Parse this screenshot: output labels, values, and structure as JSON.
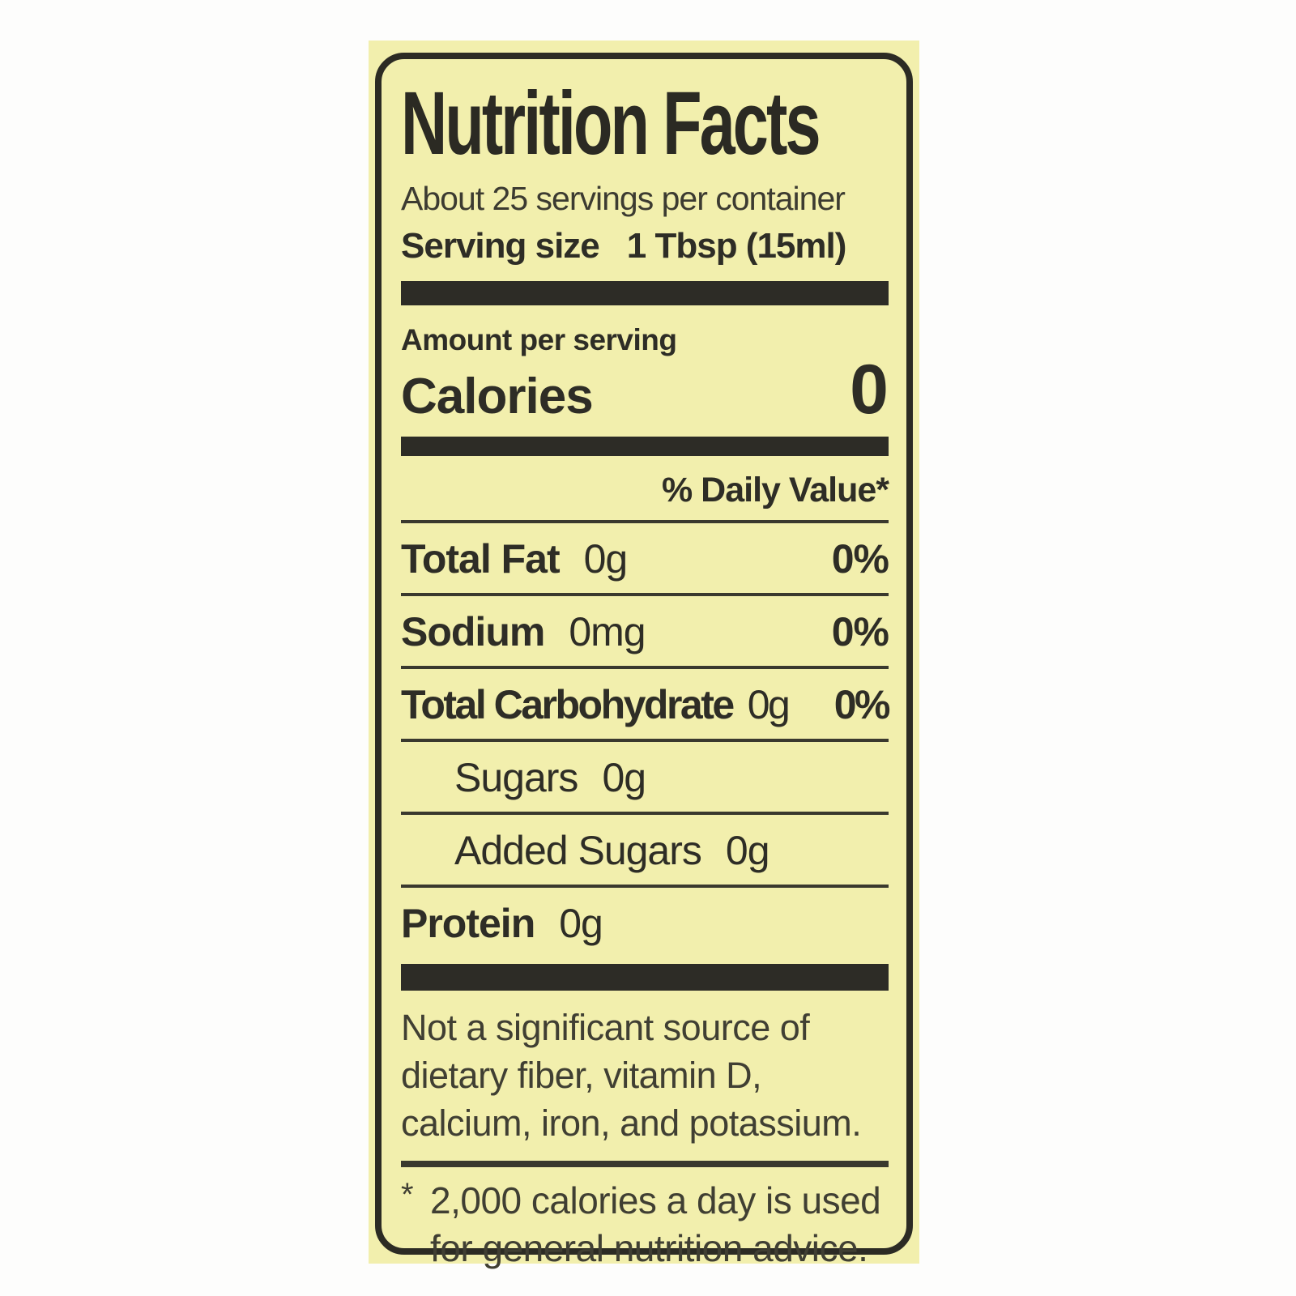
{
  "label": {
    "title": "Nutrition Facts",
    "servings_per_container": "About 25 servings per container",
    "serving_size_label": "Serving size",
    "serving_size_value": "1 Tbsp (15ml)",
    "amount_per_serving": "Amount per serving",
    "calories_label": "Calories",
    "calories_value": "0",
    "daily_value_header": "% Daily Value*",
    "nutrients": [
      {
        "name": "Total Fat",
        "amount": "0g",
        "dv": "0%"
      },
      {
        "name": "Sodium",
        "amount": "0mg",
        "dv": "0%"
      },
      {
        "name": "Total Carbohydrate",
        "amount": "0g",
        "dv": "0%"
      },
      {
        "name": "Sugars",
        "amount": "0g",
        "dv": ""
      },
      {
        "name": "Added Sugars",
        "amount": "0g",
        "dv": ""
      },
      {
        "name": "Protein",
        "amount": "0g",
        "dv": ""
      }
    ],
    "note_lines": [
      "Not a significant source of",
      "dietary fiber, vitamin D,",
      "calcium, iron, and potassium."
    ],
    "footnote_marker": "*",
    "footnote_lines": [
      "2,000 calories a day is used",
      "for general nutrition advice."
    ],
    "colors": {
      "label_background": "#f2efad",
      "border": "#2c2b24",
      "text": "#2e2d26",
      "bar": "#2d2c26"
    }
  }
}
